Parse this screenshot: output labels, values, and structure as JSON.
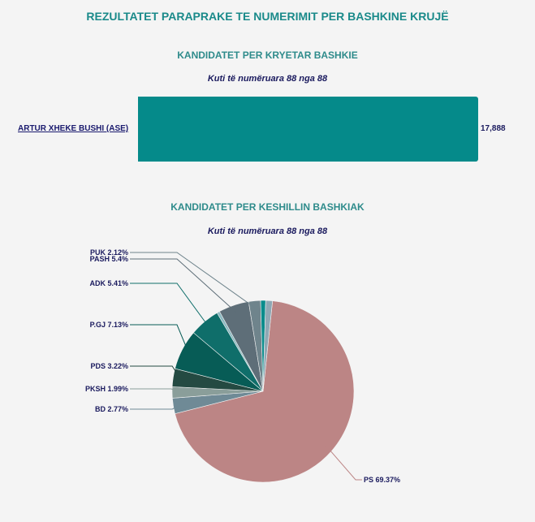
{
  "title": "REZULTATET PARAPRAKE TE NUMERIMIT PER BASHKINE KRUJË",
  "mayor_section": {
    "heading": "KANDIDATET PER KRYETAR BASHKIE",
    "boxes_counted": "Kuti të numëruara 88 nga 88"
  },
  "council_section": {
    "heading": "KANDIDATET PER KESHILLIN BASHKIAK",
    "boxes_counted": "Kuti të numëruara 88 nga 88"
  },
  "chart_data": [
    {
      "type": "bar",
      "orientation": "horizontal",
      "categories": [
        "ARTUR XHEKE BUSHI (ASE)"
      ],
      "values": [
        17888
      ],
      "value_labels": [
        "17,888"
      ]
    },
    {
      "type": "pie",
      "slices": [
        {
          "label": "PS 69.37%",
          "value": 69.37,
          "color": "#bc8585"
        },
        {
          "label": "BD 2.77%",
          "value": 2.77,
          "color": "#6f8a96"
        },
        {
          "label": "PKSH 1.99%",
          "value": 1.99,
          "color": "#8a9e9a"
        },
        {
          "label": "PDS 3.22%",
          "value": 3.22,
          "color": "#244a42"
        },
        {
          "label": "P.GJ 7.13%",
          "value": 7.13,
          "color": "#075c56"
        },
        {
          "label": "ADK 5.41%",
          "value": 5.41,
          "color": "#0f6e6a"
        },
        {
          "label": "",
          "value": 0.5,
          "color": "#8ab8c0"
        },
        {
          "label": "PASH 5.4%",
          "value": 5.4,
          "color": "#5e6e78"
        },
        {
          "label": "PUK 2.12%",
          "value": 2.12,
          "color": "#6f848c"
        },
        {
          "label": "",
          "value": 0.89,
          "color": "#0a8c8c"
        },
        {
          "label": "",
          "value": 1.2,
          "color": "#8fa8b4"
        }
      ]
    }
  ]
}
